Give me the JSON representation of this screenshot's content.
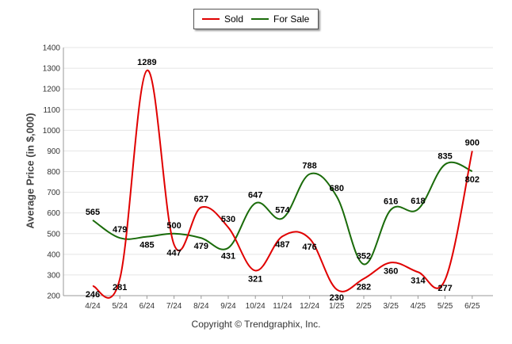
{
  "chart_data": {
    "type": "line",
    "ylabel": "Average Price (in $,000)",
    "xlabel": "",
    "ylim": [
      200,
      1400
    ],
    "yticks": [
      200,
      300,
      400,
      500,
      600,
      700,
      800,
      900,
      1000,
      1100,
      1200,
      1300,
      1400
    ],
    "categories": [
      "4/24",
      "5/24",
      "6/24",
      "7/24",
      "8/24",
      "9/24",
      "10/24",
      "11/24",
      "12/24",
      "1/25",
      "2/25",
      "3/25",
      "4/25",
      "5/25",
      "6/25"
    ],
    "series": [
      {
        "name": "Sold",
        "color": "#e00000",
        "values": [
          246,
          281,
          1289,
          447,
          627,
          530,
          321,
          487,
          476,
          230,
          282,
          360,
          314,
          277,
          900
        ]
      },
      {
        "name": "For Sale",
        "color": "#1a6b0a",
        "values": [
          565,
          479,
          485,
          500,
          479,
          431,
          647,
          574,
          788,
          680,
          352,
          616,
          618,
          835,
          802
        ]
      }
    ],
    "legend": "top-center",
    "grid": true
  },
  "footer": {
    "copyright": "Copyright © Trendgraphix, Inc."
  }
}
